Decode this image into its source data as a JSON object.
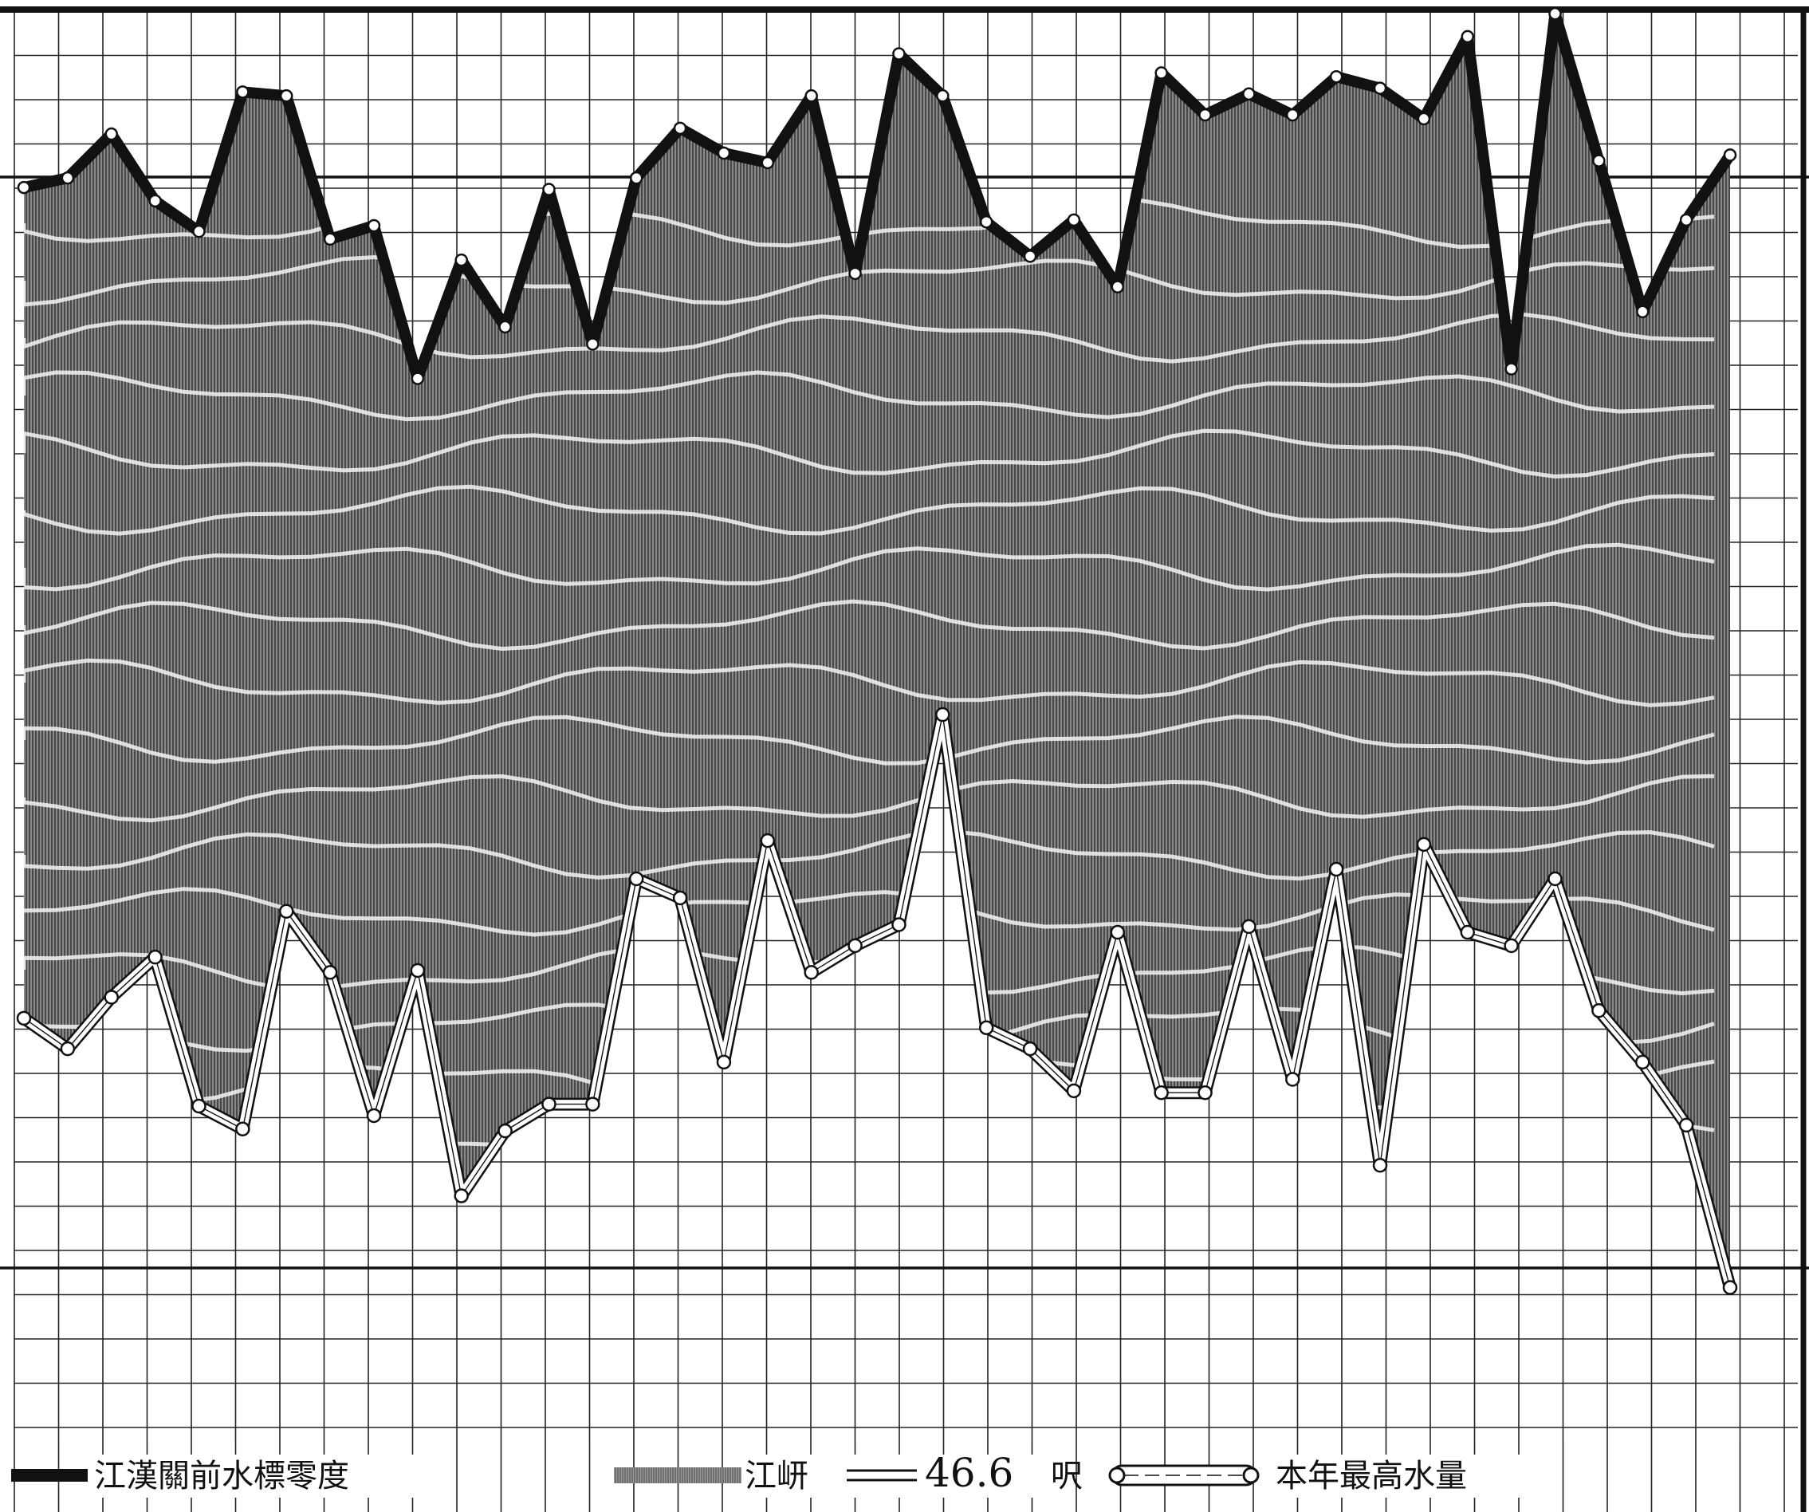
{
  "chart_data": {
    "type": "area",
    "title": "",
    "xlabel": "",
    "ylabel": "",
    "grid": true,
    "ylim": [
      -14,
      62
    ],
    "x": [
      1,
      2,
      3,
      4,
      5,
      6,
      7,
      8,
      9,
      10,
      11,
      12,
      13,
      14,
      15,
      16,
      17,
      18,
      19,
      20,
      21,
      22,
      23,
      24,
      25,
      26,
      27,
      28,
      29,
      30,
      31,
      32,
      33,
      34,
      35,
      36,
      37,
      38,
      39,
      40
    ],
    "series": [
      {
        "name": "本年最高水量",
        "style": "double-hollow",
        "values": [
          52.6,
          53.1,
          55.4,
          51.9,
          50.3,
          57.6,
          57.4,
          49.9,
          50.6,
          42.6,
          48.8,
          45.3,
          52.5,
          44.4,
          53.1,
          55.7,
          54.4,
          53.9,
          57.4,
          48.1,
          59.6,
          57.4,
          50.8,
          49.0,
          50.9,
          47.4,
          58.6,
          56.4,
          57.5,
          56.4,
          58.4,
          57.8,
          56.2,
          60.5,
          43.1,
          61.7,
          54.0,
          46.1,
          50.9,
          54.3
        ]
      },
      {
        "name": "江漢關前水標零度",
        "style": "solid-black",
        "values": [
          9.1,
          7.5,
          10.2,
          12.3,
          4.5,
          3.3,
          14.7,
          11.5,
          4.0,
          11.6,
          -0.2,
          3.2,
          4.6,
          4.6,
          16.4,
          15.4,
          6.8,
          18.4,
          11.5,
          12.9,
          14.0,
          25.0,
          8.6,
          7.5,
          5.3,
          13.6,
          5.2,
          5.2,
          13.9,
          5.9,
          16.9,
          1.4,
          18.2,
          13.6,
          12.9,
          16.4,
          9.5,
          6.8,
          3.5,
          -5.0
        ]
      }
    ],
    "legend": [
      {
        "symbol": "solid-black",
        "label": "江漢關前水標零度"
      },
      {
        "symbol": "gray-hatch",
        "label": "江岍"
      },
      {
        "symbol": "equals",
        "label": "=="
      },
      {
        "symbol": "value",
        "label": "46.6"
      },
      {
        "symbol": "unit",
        "label": "呎"
      },
      {
        "symbol": "double-hollow",
        "label": "本年最高水量"
      }
    ]
  }
}
